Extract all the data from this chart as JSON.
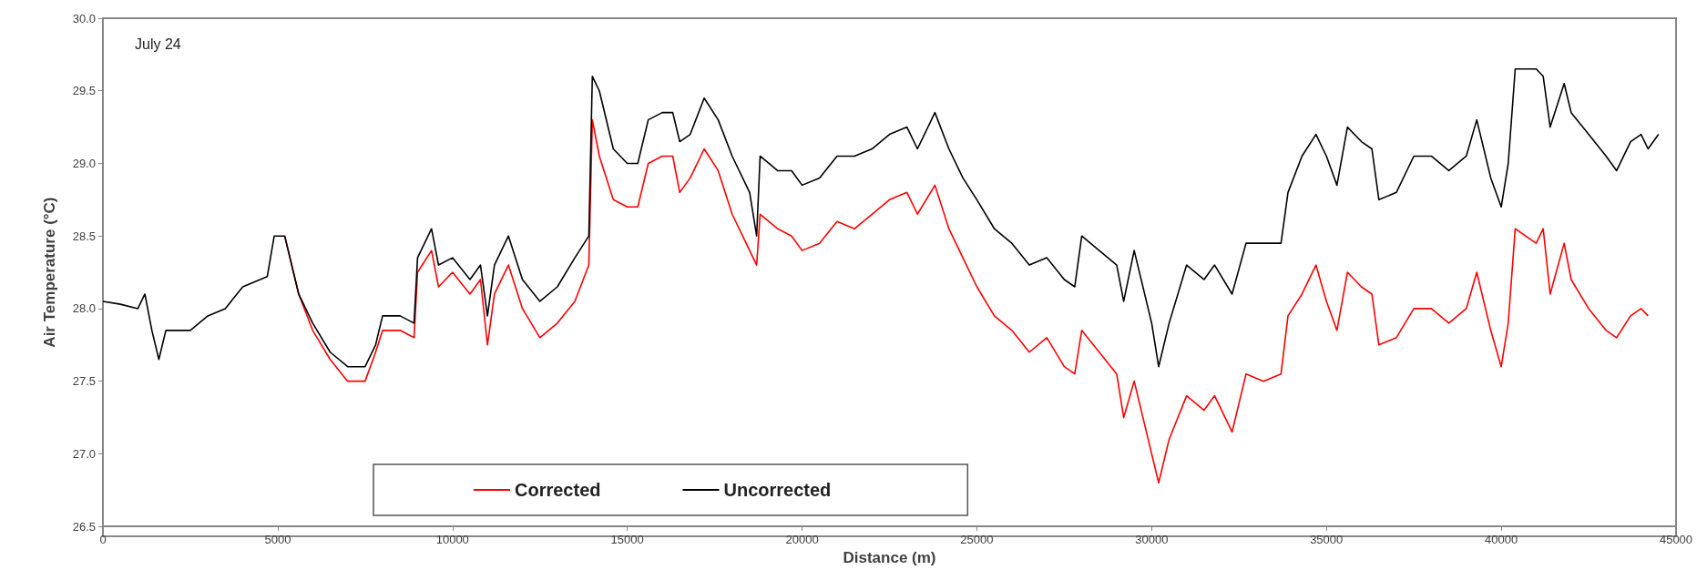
{
  "chart_data": {
    "type": "line",
    "xlabel": "Distance (m)",
    "ylabel": "Air Temperature (°C)",
    "annotations": [
      "July 24"
    ],
    "xlim": [
      0,
      45000
    ],
    "xticks": [
      0,
      5000,
      10000,
      15000,
      20000,
      25000,
      30000,
      35000,
      40000,
      45000
    ],
    "ylim": [
      26.5,
      30
    ],
    "yticks": [
      {
        "value": 26.5,
        "label": "26.5"
      },
      {
        "value": 27,
        "label": "27.0"
      },
      {
        "value": 27.5,
        "label": "27.5"
      },
      {
        "value": 28,
        "label": "28.0"
      },
      {
        "value": 28.5,
        "label": "28.5"
      },
      {
        "value": 29,
        "label": "29.0"
      },
      {
        "value": 29.5,
        "label": "29.5"
      },
      {
        "value": 30,
        "label": "30.0"
      }
    ],
    "grid": false,
    "legend": "bottom",
    "marker": "none",
    "line_style": "solid",
    "series": [
      {
        "name": "Corrected",
        "color": "#ff0000",
        "x": [
          5200,
          5600,
          6000,
          6500,
          7000,
          7500,
          7800,
          8000,
          8500,
          8900,
          9000,
          9400,
          9600,
          10000,
          10500,
          10800,
          11000,
          11200,
          11600,
          12000,
          12500,
          13000,
          13500,
          13900,
          14000,
          14200,
          14600,
          15000,
          15300,
          15600,
          16000,
          16300,
          16500,
          16800,
          17200,
          17600,
          18000,
          18500,
          18700,
          18800,
          19300,
          19700,
          20000,
          20500,
          21000,
          21500,
          22000,
          22500,
          23000,
          23300,
          23800,
          24200,
          24600,
          25000,
          25500,
          26000,
          26500,
          27000,
          27500,
          27800,
          28000,
          28500,
          29000,
          29200,
          29500,
          30000,
          30200,
          30500,
          31000,
          31500,
          31800,
          32300,
          32700,
          33200,
          33700,
          33900,
          34300,
          34700,
          35000,
          35300,
          35600,
          36000,
          36300,
          36500,
          37000,
          37500,
          38000,
          38500,
          39000,
          39300,
          39700,
          40000,
          40200,
          40400,
          41000,
          41200,
          41400,
          41800,
          42000,
          42500,
          43000,
          43300,
          43700,
          44000,
          44200
        ],
        "values": [
          28.5,
          28.1,
          27.85,
          27.65,
          27.5,
          27.5,
          27.7,
          27.85,
          27.85,
          27.8,
          28.25,
          28.4,
          28.15,
          28.25,
          28.1,
          28.2,
          27.75,
          28.1,
          28.3,
          28.0,
          27.8,
          27.9,
          28.05,
          28.3,
          29.3,
          29.05,
          28.75,
          28.7,
          28.7,
          29.0,
          29.05,
          29.05,
          28.8,
          28.9,
          29.1,
          28.95,
          28.65,
          28.4,
          28.3,
          28.65,
          28.55,
          28.5,
          28.4,
          28.45,
          28.6,
          28.55,
          28.65,
          28.75,
          28.8,
          28.65,
          28.85,
          28.55,
          28.35,
          28.15,
          27.95,
          27.85,
          27.7,
          27.8,
          27.6,
          27.55,
          27.85,
          27.7,
          27.55,
          27.25,
          27.5,
          27.0,
          26.8,
          27.1,
          27.4,
          27.3,
          27.4,
          27.15,
          27.55,
          27.5,
          27.55,
          27.95,
          28.1,
          28.3,
          28.05,
          27.85,
          28.25,
          28.15,
          28.1,
          27.75,
          27.8,
          28.0,
          28.0,
          27.9,
          28.0,
          28.25,
          27.85,
          27.6,
          27.9,
          28.55,
          28.45,
          28.55,
          28.1,
          28.45,
          28.2,
          28.0,
          27.85,
          27.8,
          27.95,
          28.0,
          27.95
        ]
      },
      {
        "name": "Uncorrected",
        "color": "#000000",
        "x": [
          0,
          500,
          1000,
          1200,
          1400,
          1600,
          1800,
          2500,
          3000,
          3500,
          4000,
          4700,
          4900,
          5200,
          5600,
          6000,
          6500,
          7000,
          7500,
          7800,
          8000,
          8500,
          8900,
          9000,
          9400,
          9600,
          10000,
          10500,
          10800,
          11000,
          11200,
          11600,
          12000,
          12500,
          13000,
          13500,
          13900,
          14000,
          14200,
          14600,
          15000,
          15300,
          15600,
          16000,
          16300,
          16500,
          16800,
          17200,
          17600,
          18000,
          18500,
          18700,
          18800,
          19300,
          19700,
          20000,
          20500,
          21000,
          21500,
          22000,
          22500,
          23000,
          23300,
          23800,
          24200,
          24600,
          25000,
          25500,
          26000,
          26500,
          27000,
          27500,
          27800,
          28000,
          28500,
          29000,
          29200,
          29500,
          30000,
          30200,
          30500,
          31000,
          31500,
          31800,
          32300,
          32700,
          33200,
          33700,
          33900,
          34300,
          34700,
          35000,
          35300,
          35600,
          36000,
          36300,
          36500,
          37000,
          37500,
          38000,
          38500,
          39000,
          39300,
          39700,
          40000,
          40200,
          40400,
          41000,
          41200,
          41400,
          41800,
          42000,
          42500,
          43000,
          43300,
          43700,
          44000,
          44200,
          44500
        ],
        "values": [
          28.05,
          28.03,
          28.0,
          28.1,
          27.85,
          27.65,
          27.85,
          27.85,
          27.95,
          28.0,
          28.15,
          28.22,
          28.5,
          28.5,
          28.1,
          27.9,
          27.7,
          27.6,
          27.6,
          27.75,
          27.95,
          27.95,
          27.9,
          28.35,
          28.55,
          28.3,
          28.35,
          28.2,
          28.3,
          27.95,
          28.3,
          28.5,
          28.2,
          28.05,
          28.15,
          28.35,
          28.5,
          29.6,
          29.5,
          29.1,
          29.0,
          29.0,
          29.3,
          29.35,
          29.35,
          29.15,
          29.2,
          29.45,
          29.3,
          29.05,
          28.8,
          28.5,
          29.05,
          28.95,
          28.95,
          28.85,
          28.9,
          29.05,
          29.05,
          29.1,
          29.2,
          29.25,
          29.1,
          29.35,
          29.1,
          28.9,
          28.75,
          28.55,
          28.45,
          28.3,
          28.35,
          28.2,
          28.15,
          28.5,
          28.4,
          28.3,
          28.05,
          28.4,
          27.9,
          27.6,
          27.9,
          28.3,
          28.2,
          28.3,
          28.1,
          28.45,
          28.45,
          28.45,
          28.8,
          29.05,
          29.2,
          29.05,
          28.85,
          29.25,
          29.15,
          29.1,
          28.75,
          28.8,
          29.05,
          29.05,
          28.95,
          29.05,
          29.3,
          28.9,
          28.7,
          29.0,
          29.65,
          29.65,
          29.6,
          29.25,
          29.55,
          29.35,
          29.2,
          29.05,
          28.95,
          29.15,
          29.2,
          29.1,
          29.2
        ]
      }
    ]
  }
}
